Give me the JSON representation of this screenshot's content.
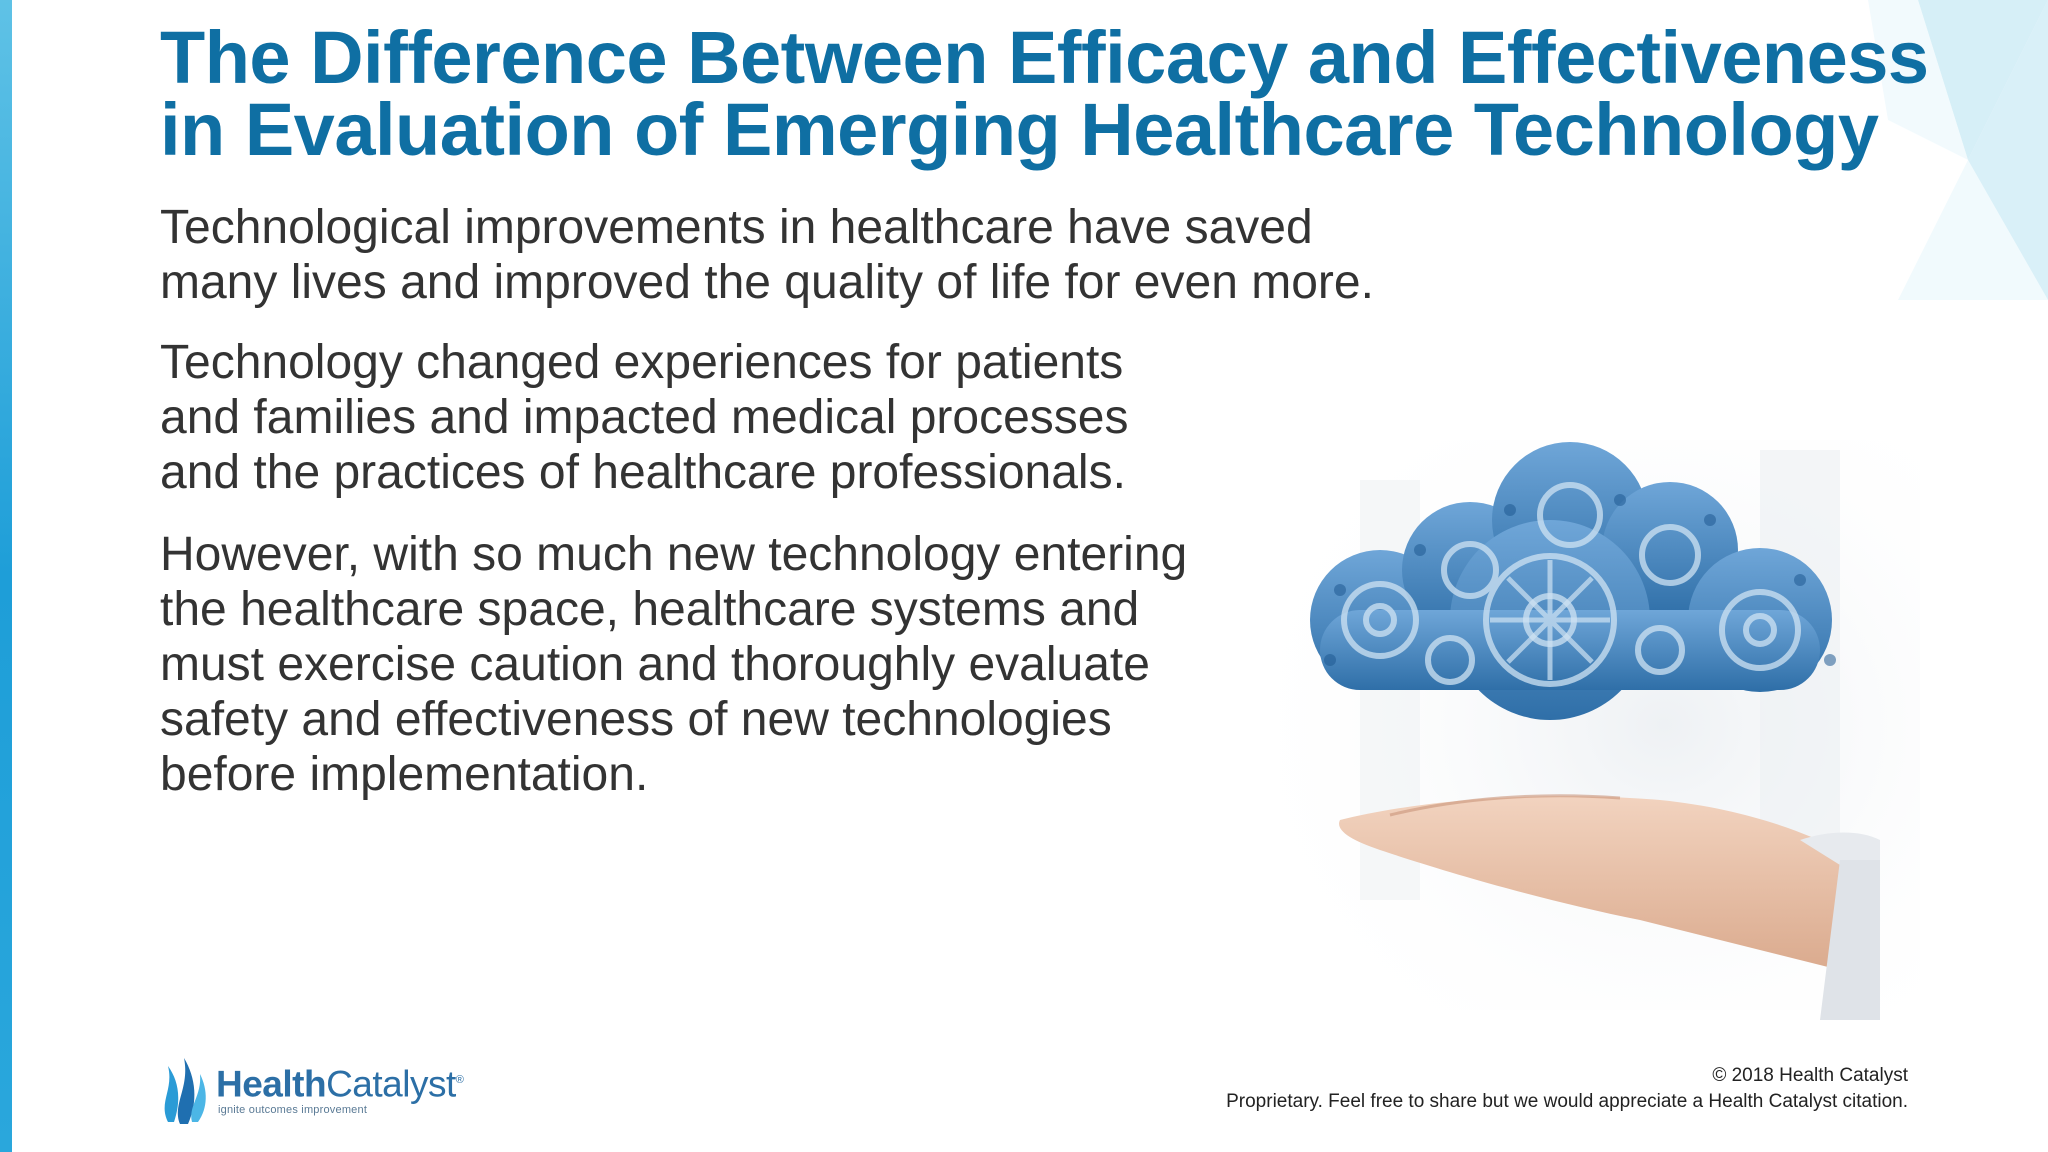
{
  "title": {
    "line1": "The Difference Between Efficacy and Effectiveness",
    "line2": "in Evaluation of Emerging Healthcare Technology"
  },
  "paragraphs": {
    "p1": {
      "line1": "Technological improvements in healthcare have saved",
      "line2": "many lives and improved the quality of life for even more."
    },
    "p2": {
      "line1": "Technology changed experiences for patients",
      "line2": "and families and impacted medical processes",
      "line3": "and the practices of healthcare professionals."
    },
    "p3": {
      "line1": "However, with so much new technology entering",
      "line2": "the healthcare space, healthcare systems and",
      "line3": "must exercise caution and thoroughly evaluate",
      "line4": "safety and effectiveness of new technologies",
      "line5": "before implementation."
    }
  },
  "logo": {
    "name_bold": "Health",
    "name_regular": "Catalyst",
    "trademark": "®",
    "tagline": "ignite outcomes improvement"
  },
  "footer": {
    "copyright": "© 2018 Health Catalyst",
    "notice": "Proprietary. Feel free to share but we would appreciate a Health Catalyst citation."
  },
  "illustration": {
    "icon": "gear-cloud-in-hands-icon"
  },
  "colors": {
    "title": "#0f6fa3",
    "body_text": "#333333",
    "accent": "#1e9ed8",
    "logo": "#2c6fa6"
  }
}
